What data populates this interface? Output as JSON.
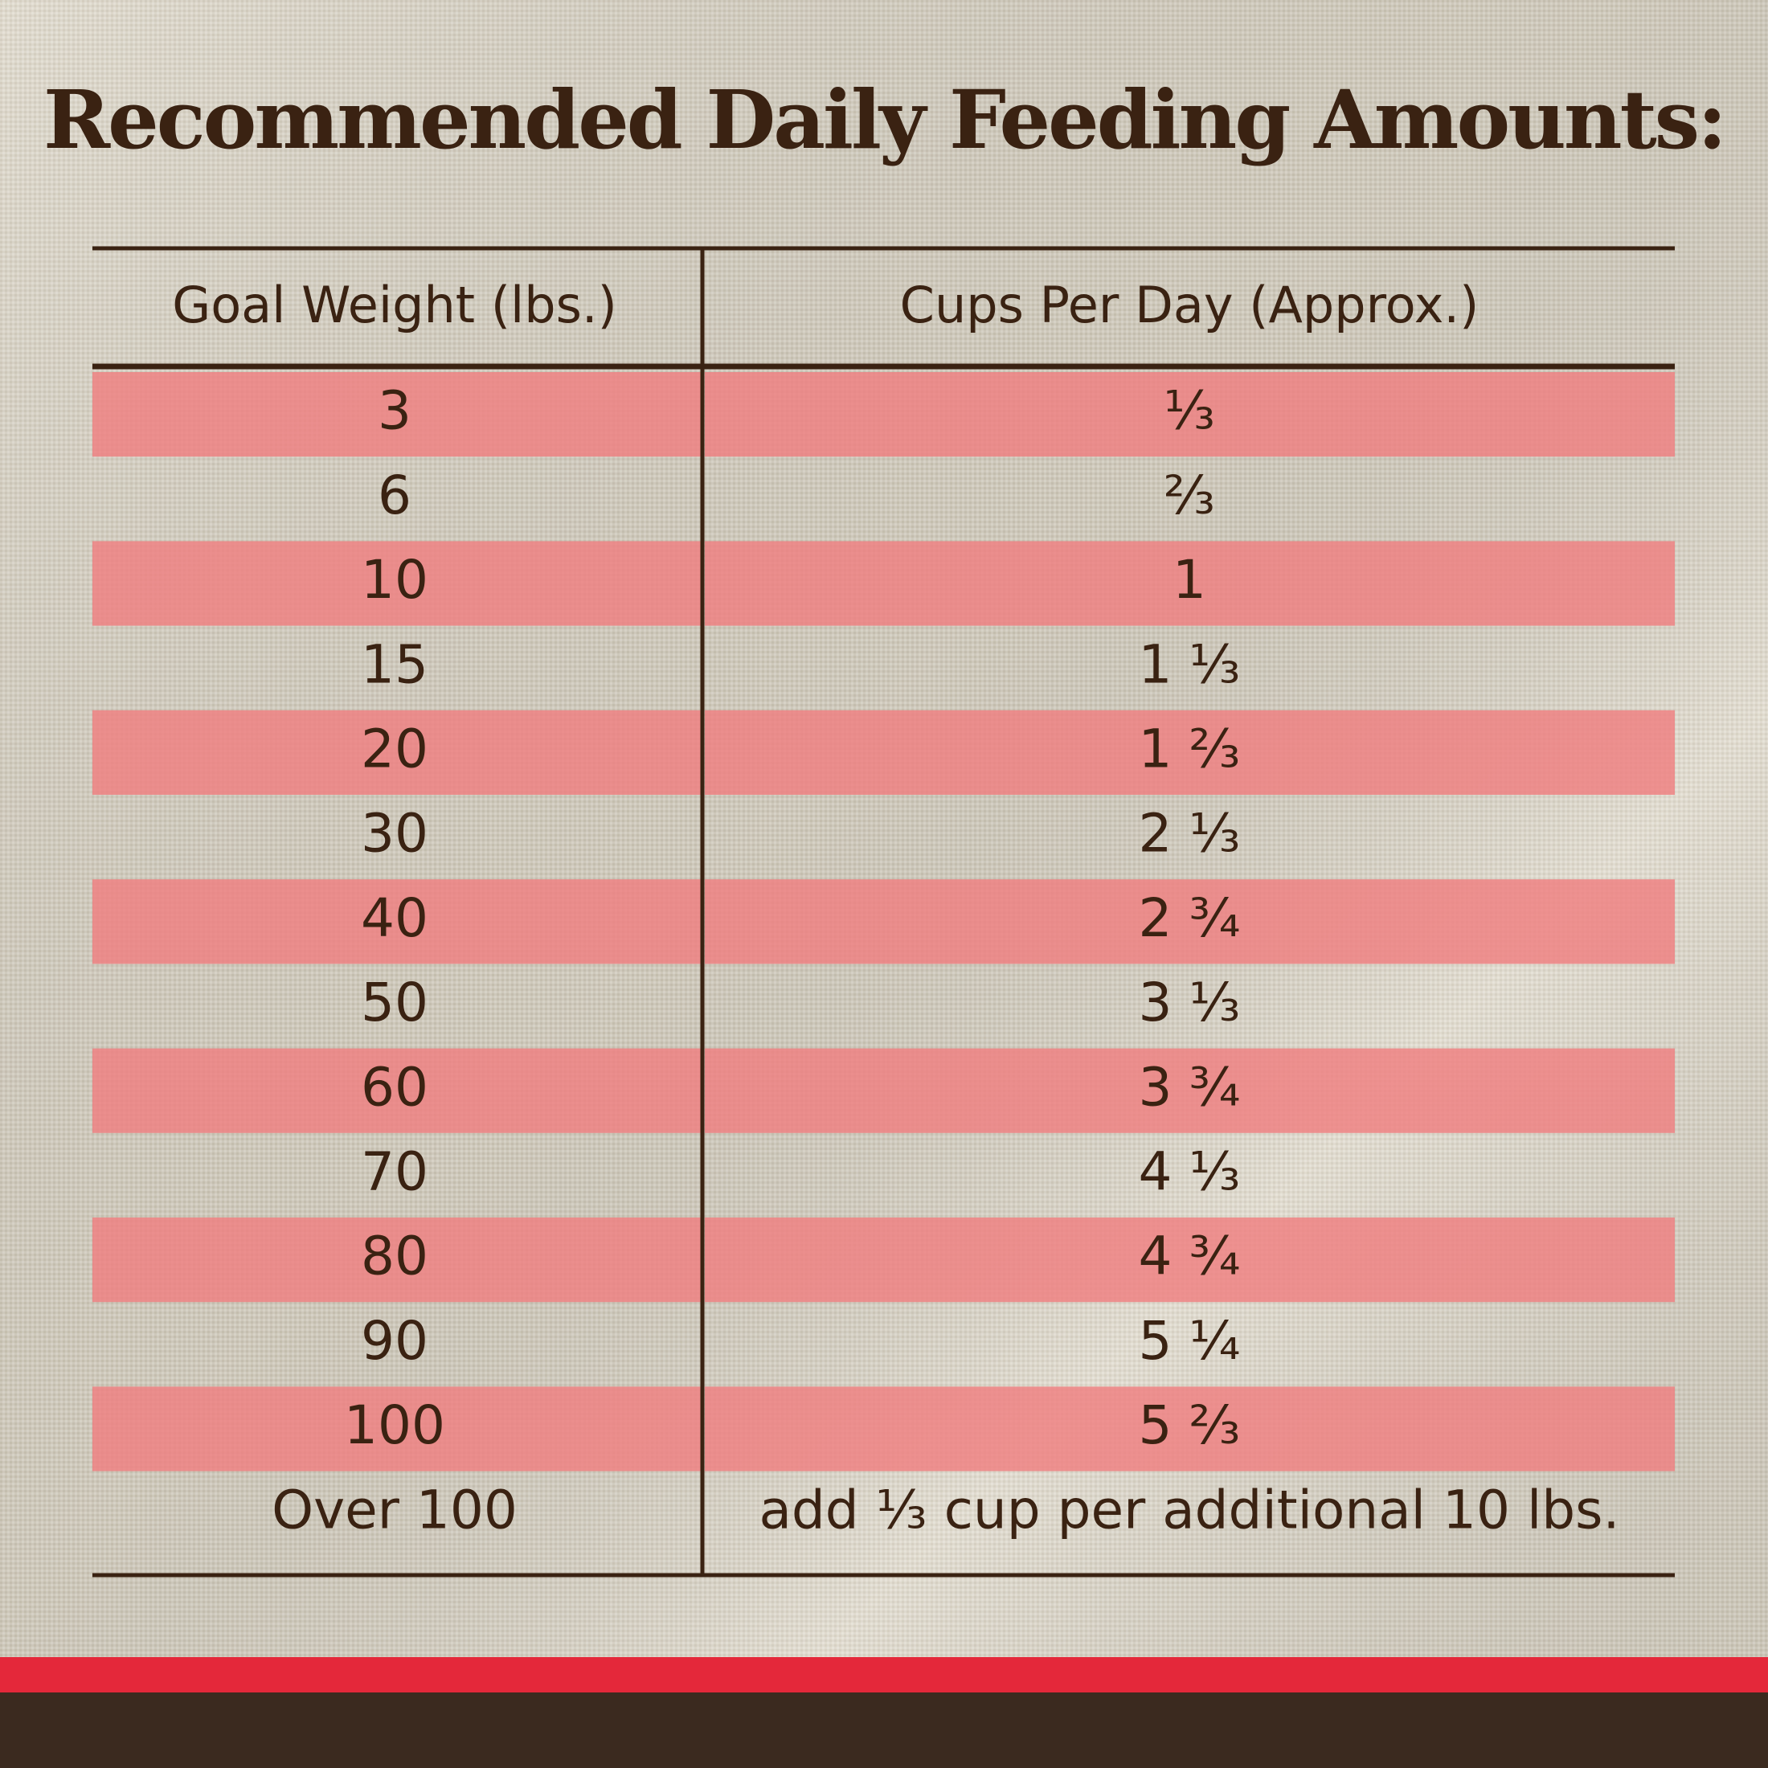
{
  "title": "Recommended Daily Feeding Amounts:",
  "table": {
    "headers": [
      "Goal Weight (lbs.)",
      "Cups Per Day (Approx.)"
    ],
    "rows": [
      [
        "3",
        "⅓"
      ],
      [
        "6",
        "⅔"
      ],
      [
        "10",
        "1"
      ],
      [
        "15",
        "1 ⅓"
      ],
      [
        "20",
        "1 ⅔"
      ],
      [
        "30",
        "2 ⅓"
      ],
      [
        "40",
        "2 ¾"
      ],
      [
        "50",
        "3 ⅓"
      ],
      [
        "60",
        "3 ¾"
      ],
      [
        "70",
        "4 ⅓"
      ],
      [
        "80",
        "4 ¾"
      ],
      [
        "90",
        "5 ¼"
      ],
      [
        "100",
        "5 ⅔"
      ],
      [
        "Over 100",
        "add ⅓ cup per additional 10 lbs."
      ]
    ]
  }
}
